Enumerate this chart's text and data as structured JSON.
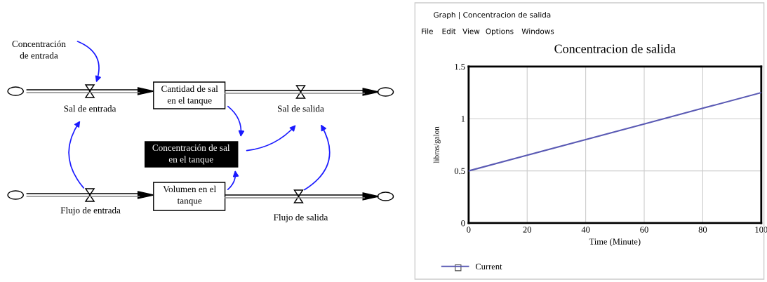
{
  "chart_data": [
    {
      "type": "other",
      "annotations": [
        "Concentración\nde entrada",
        "Sal de entrada",
        "Cantidad de sal\nen el tanque",
        "Sal de salida",
        "Concentración de sal\nen el tanque",
        "Flujo de entrada",
        "Volumen en el\ntanque",
        "Flujo de salida"
      ]
    },
    {
      "type": "line",
      "title": "Concentracion de salida",
      "xlabel": "Time (Minute)",
      "ylabel": "libras/galon",
      "annotations": [
        "Graph | Concentracion de salida",
        "File",
        "Edit",
        "View",
        "Options",
        "Windows"
      ],
      "x": [
        0,
        20,
        40,
        60,
        80,
        100
      ],
      "series": [
        {
          "name": "Current",
          "color": "#5a5ab4",
          "values": [
            0.5,
            0.65,
            0.8,
            0.95,
            1.1,
            1.25
          ]
        }
      ],
      "xlim": [
        0,
        100
      ],
      "xticks": [
        0,
        20,
        40,
        60,
        80,
        100
      ],
      "ylim": [
        0,
        1.5
      ],
      "yticks": [
        0,
        0.5,
        1,
        1.5
      ],
      "grid": true,
      "legend": "bottom left",
      "marker": "none",
      "line_style": "solid"
    }
  ]
}
